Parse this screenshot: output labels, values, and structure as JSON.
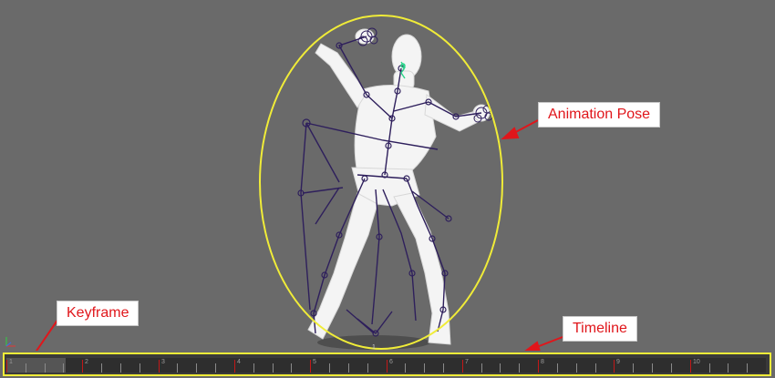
{
  "callouts": {
    "animation_pose": "Animation Pose",
    "keyframe": "Keyframe",
    "timeline": "Timeline"
  },
  "timeline": {
    "frame_labels": [
      "1",
      "2",
      "3",
      "4",
      "5",
      "6",
      "7",
      "8",
      "9",
      "10"
    ],
    "current_frame": "1",
    "range_start_fraction": 0.0,
    "range_end_fraction": 0.078
  },
  "colors": {
    "background": "#6a6a6a",
    "highlight": "#f0ec38",
    "callout_text": "#e0161b",
    "arrow": "#e0161b",
    "rig": "#2e1f5c",
    "mesh": "#f2f2f2",
    "key_marker": "#c21818"
  },
  "icons": {
    "axis": "axis-gizmo-icon",
    "arrow": "arrow-icon"
  }
}
